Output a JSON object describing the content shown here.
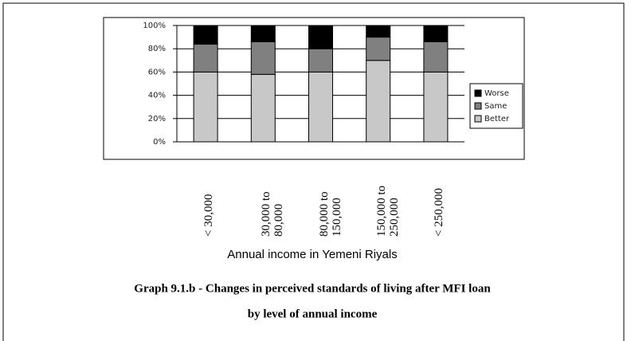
{
  "chart_data": {
    "type": "bar",
    "stacked": true,
    "title": [
      "Graph  9.1.b - Changes in perceived standards of living after MFI loan",
      "by level of annual income"
    ],
    "x_label": "Annual income in Yemeni Riyals",
    "categories": [
      "< 30,000",
      "30,000 to 80,000",
      "80,000 to 150,000",
      "150,000 to 250,000",
      "< 250,000"
    ],
    "series": [
      {
        "name": "Better",
        "color": "#c8c8c8",
        "values": [
          60,
          58,
          60,
          70,
          60
        ]
      },
      {
        "name": "Same",
        "color": "#808080",
        "values": [
          24,
          28,
          20,
          20,
          26
        ]
      },
      {
        "name": "Worse",
        "color": "#000000",
        "values": [
          16,
          14,
          20,
          10,
          14
        ]
      }
    ],
    "ylim": [
      0,
      100
    ],
    "yticks": [
      {
        "value": 0,
        "label": "0%"
      },
      {
        "value": 20,
        "label": "20%"
      },
      {
        "value": 40,
        "label": "40%"
      },
      {
        "value": 60,
        "label": "60%"
      },
      {
        "value": 80,
        "label": "80%"
      },
      {
        "value": 100,
        "label": "100%"
      }
    ],
    "grid": true,
    "legend": "right"
  }
}
